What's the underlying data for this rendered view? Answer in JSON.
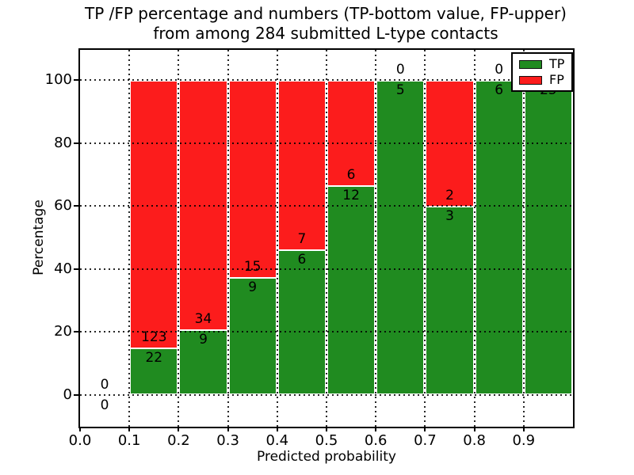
{
  "chart_data": {
    "type": "bar",
    "stacked": true,
    "title_lines": [
      "TP /FP percentage and numbers (TP-bottom value, FP-upper)",
      "from among 284 submitted L-type contacts"
    ],
    "xlabel": "Predicted probability",
    "ylabel": "Percentage",
    "x_tick_labels": [
      "0.0",
      "0.1",
      "0.2",
      "0.3",
      "0.4",
      "0.5",
      "0.6",
      "0.7",
      "0.8",
      "0.9"
    ],
    "y_tick_labels": [
      "0",
      "20",
      "40",
      "60",
      "80",
      "100"
    ],
    "y_tick_values": [
      0,
      20,
      40,
      60,
      80,
      100
    ],
    "xlim": [
      0.0,
      1.0
    ],
    "ylim": [
      -10,
      110
    ],
    "grid": "dotted",
    "total_contacts": 284,
    "bins": [
      {
        "range": [
          0.0,
          0.1
        ],
        "tp": 0,
        "fp": 0,
        "tp_pct": 0
      },
      {
        "range": [
          0.1,
          0.2
        ],
        "tp": 22,
        "fp": 123,
        "tp_pct": 15.2
      },
      {
        "range": [
          0.2,
          0.3
        ],
        "tp": 9,
        "fp": 34,
        "tp_pct": 20.9
      },
      {
        "range": [
          0.3,
          0.4
        ],
        "tp": 9,
        "fp": 15,
        "tp_pct": 37.5
      },
      {
        "range": [
          0.4,
          0.5
        ],
        "tp": 6,
        "fp": 7,
        "tp_pct": 46.2
      },
      {
        "range": [
          0.5,
          0.6
        ],
        "tp": 12,
        "fp": 6,
        "tp_pct": 66.7
      },
      {
        "range": [
          0.6,
          0.7
        ],
        "tp": 5,
        "fp": 0,
        "tp_pct": 100
      },
      {
        "range": [
          0.7,
          0.8
        ],
        "tp": 3,
        "fp": 2,
        "tp_pct": 60
      },
      {
        "range": [
          0.8,
          0.9
        ],
        "tp": 6,
        "fp": 0,
        "tp_pct": 100
      },
      {
        "range": [
          0.9,
          1.0
        ],
        "tp": 25,
        "fp": 0,
        "tp_pct": 100
      }
    ],
    "legend": [
      {
        "label": "TP",
        "color": "#208b20"
      },
      {
        "label": "FP",
        "color": "#fc1c1c"
      }
    ],
    "colors": {
      "tp": "#208b20",
      "fp": "#fc1c1c",
      "grid": "#000000",
      "frame": "#000000"
    },
    "legend_position": "upper right"
  }
}
